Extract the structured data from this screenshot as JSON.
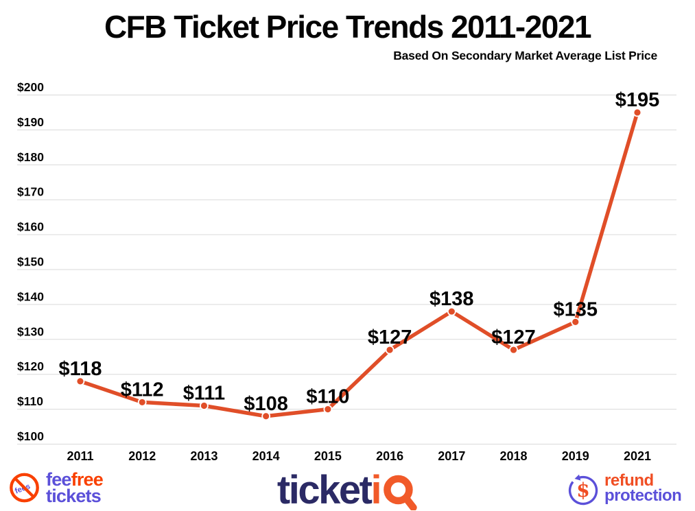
{
  "header": {
    "title": "CFB Ticket Price Trends 2011-2021",
    "subtitle": "Based On Secondary Market Average List Price"
  },
  "chart_data": {
    "type": "line",
    "title": "CFB Ticket Price Trends 2011-2021",
    "subtitle": "Based On Secondary Market Average List Price",
    "categories": [
      "2011",
      "2012",
      "2013",
      "2014",
      "2015",
      "2016",
      "2017",
      "2018",
      "2019",
      "2021"
    ],
    "values": [
      118,
      112,
      111,
      108,
      110,
      127,
      138,
      127,
      135,
      195
    ],
    "point_labels": [
      "$118",
      "$112",
      "$111",
      "$108",
      "$110",
      "$127",
      "$138",
      "$127",
      "$135",
      "$195"
    ],
    "xlabel": "",
    "ylabel": "",
    "ylim": [
      100,
      200
    ],
    "y_step": 10,
    "y_tick_prefix": "$",
    "grid": true,
    "legend": "none",
    "line_color": "#e04e28",
    "marker_color": "#e04e28",
    "marker_outline": "#ffffff"
  },
  "footer": {
    "feefree": {
      "badge": "fees",
      "fee": "fee",
      "free": "free",
      "tickets": "tickets"
    },
    "ticketiq": {
      "ticket": "ticket",
      "i": "i"
    },
    "refund": {
      "currency": "$",
      "refund": "refund",
      "protection": "protection"
    }
  },
  "colors": {
    "line": "#e04e28",
    "grid": "#d9d9d9",
    "text": "#040404",
    "brand_navy": "#2b2a65",
    "brand_orange": "#f15a29",
    "logo_orange": "#f94000",
    "logo_purple": "#5b50d9",
    "refund_orange": "#f04e23"
  }
}
